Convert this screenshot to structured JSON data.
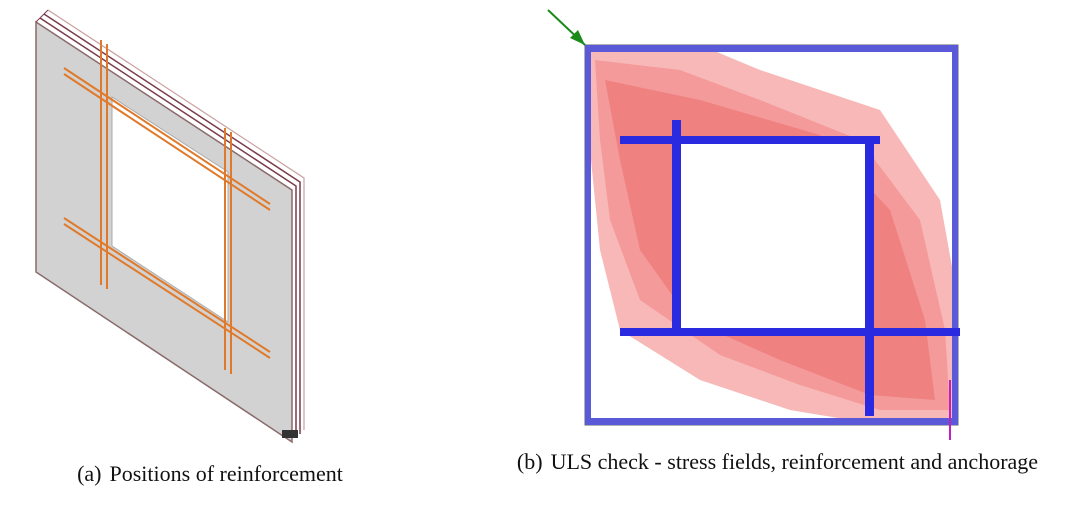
{
  "figure": {
    "panels": [
      {
        "label": "(a)",
        "caption": "Positions of reinforcement"
      },
      {
        "label": "(b)",
        "caption": "ULS check - stress fields, reinforcement and anchorage"
      }
    ]
  }
}
